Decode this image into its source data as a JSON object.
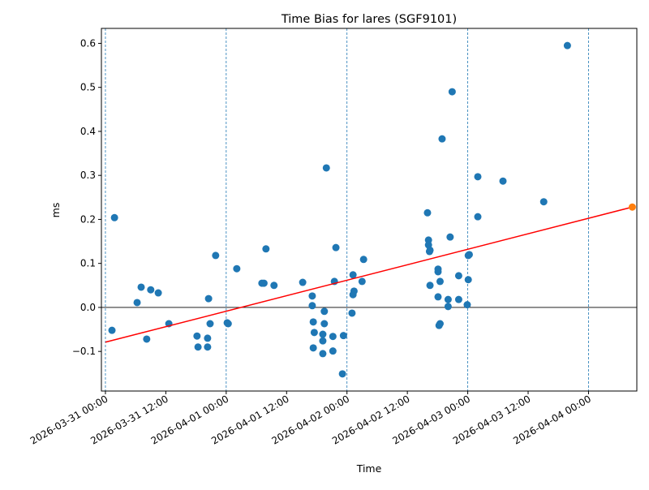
{
  "chart_data": {
    "type": "scatter",
    "title": "Time Bias for lares (SGF9101)",
    "xlabel": "Time",
    "ylabel": "ms",
    "x_units": "hours since 2026-03-31 00:00",
    "xlim": [
      -0.8,
      105.6
    ],
    "ylim": [
      -0.19,
      0.634
    ],
    "yticks": [
      -0.1,
      0.0,
      0.1,
      0.2,
      0.3,
      0.4,
      0.5,
      0.6
    ],
    "ytick_labels": [
      "−0.1",
      "0.0",
      "0.1",
      "0.2",
      "0.3",
      "0.4",
      "0.5",
      "0.6"
    ],
    "xticks": [
      0,
      12,
      24,
      36,
      48,
      60,
      72,
      84,
      96
    ],
    "xtick_labels": [
      "2026-03-31 00:00",
      "2026-03-31 12:00",
      "2026-04-01 00:00",
      "2026-04-01 12:00",
      "2026-04-02 00:00",
      "2026-04-02 12:00",
      "2026-04-03 00:00",
      "2026-04-03 12:00",
      "2026-04-04 00:00"
    ],
    "day_lines": [
      0,
      24,
      48,
      72,
      96
    ],
    "zero_line": 0,
    "colors": {
      "points": "#1f77b4",
      "trend": "#ff0000",
      "prediction": "#ff7f0e",
      "day_lines": "#1f77b4"
    },
    "series": [
      {
        "name": "observations",
        "points": [
          [
            1.3,
            -0.052
          ],
          [
            1.8,
            0.204
          ],
          [
            6.3,
            0.011
          ],
          [
            7.1,
            0.046
          ],
          [
            8.2,
            -0.072
          ],
          [
            9.0,
            0.04
          ],
          [
            10.5,
            0.033
          ],
          [
            12.6,
            -0.037
          ],
          [
            18.2,
            -0.065
          ],
          [
            18.4,
            -0.09
          ],
          [
            20.3,
            -0.07
          ],
          [
            20.3,
            -0.09
          ],
          [
            20.5,
            0.02
          ],
          [
            20.8,
            -0.037
          ],
          [
            21.9,
            0.118
          ],
          [
            24.2,
            -0.035
          ],
          [
            24.4,
            -0.037
          ],
          [
            26.1,
            0.088
          ],
          [
            31.1,
            0.055
          ],
          [
            31.5,
            0.055
          ],
          [
            31.9,
            0.133
          ],
          [
            33.5,
            0.05
          ],
          [
            39.2,
            0.057
          ],
          [
            41.1,
            0.026
          ],
          [
            41.1,
            0.004
          ],
          [
            41.3,
            -0.033
          ],
          [
            41.5,
            -0.057
          ],
          [
            41.3,
            -0.092
          ],
          [
            43.2,
            -0.061
          ],
          [
            43.2,
            -0.076
          ],
          [
            43.2,
            -0.105
          ],
          [
            43.5,
            -0.009
          ],
          [
            43.5,
            -0.037
          ],
          [
            43.9,
            0.317
          ],
          [
            45.2,
            -0.066
          ],
          [
            45.2,
            -0.099
          ],
          [
            45.5,
            0.059
          ],
          [
            45.8,
            0.136
          ],
          [
            47.1,
            -0.151
          ],
          [
            47.3,
            -0.064
          ],
          [
            49.0,
            -0.013
          ],
          [
            49.2,
            0.074
          ],
          [
            49.2,
            0.029
          ],
          [
            49.4,
            0.037
          ],
          [
            51.0,
            0.059
          ],
          [
            51.3,
            0.109
          ],
          [
            64.0,
            0.215
          ],
          [
            64.2,
            0.153
          ],
          [
            64.2,
            0.142
          ],
          [
            64.4,
            0.127
          ],
          [
            64.5,
            0.13
          ],
          [
            64.5,
            0.05
          ],
          [
            66.1,
            0.087
          ],
          [
            66.1,
            0.081
          ],
          [
            66.1,
            0.024
          ],
          [
            66.5,
            0.059
          ],
          [
            66.5,
            -0.037
          ],
          [
            66.3,
            -0.041
          ],
          [
            66.9,
            0.383
          ],
          [
            68.1,
            0.018
          ],
          [
            68.1,
            0.002
          ],
          [
            68.5,
            0.16
          ],
          [
            68.9,
            0.49
          ],
          [
            70.2,
            0.072
          ],
          [
            70.2,
            0.018
          ],
          [
            71.9,
            0.006
          ],
          [
            72.1,
            0.063
          ],
          [
            72.1,
            0.118
          ],
          [
            72.3,
            0.12
          ],
          [
            74.0,
            0.297
          ],
          [
            74.0,
            0.206
          ],
          [
            79.0,
            0.287
          ],
          [
            87.1,
            0.24
          ],
          [
            91.8,
            0.595
          ]
        ]
      },
      {
        "name": "trend",
        "type": "line",
        "points": [
          [
            0,
            -0.079
          ],
          [
            104.7,
            0.228
          ]
        ]
      },
      {
        "name": "prediction",
        "points": [
          [
            104.7,
            0.228
          ]
        ]
      }
    ]
  }
}
